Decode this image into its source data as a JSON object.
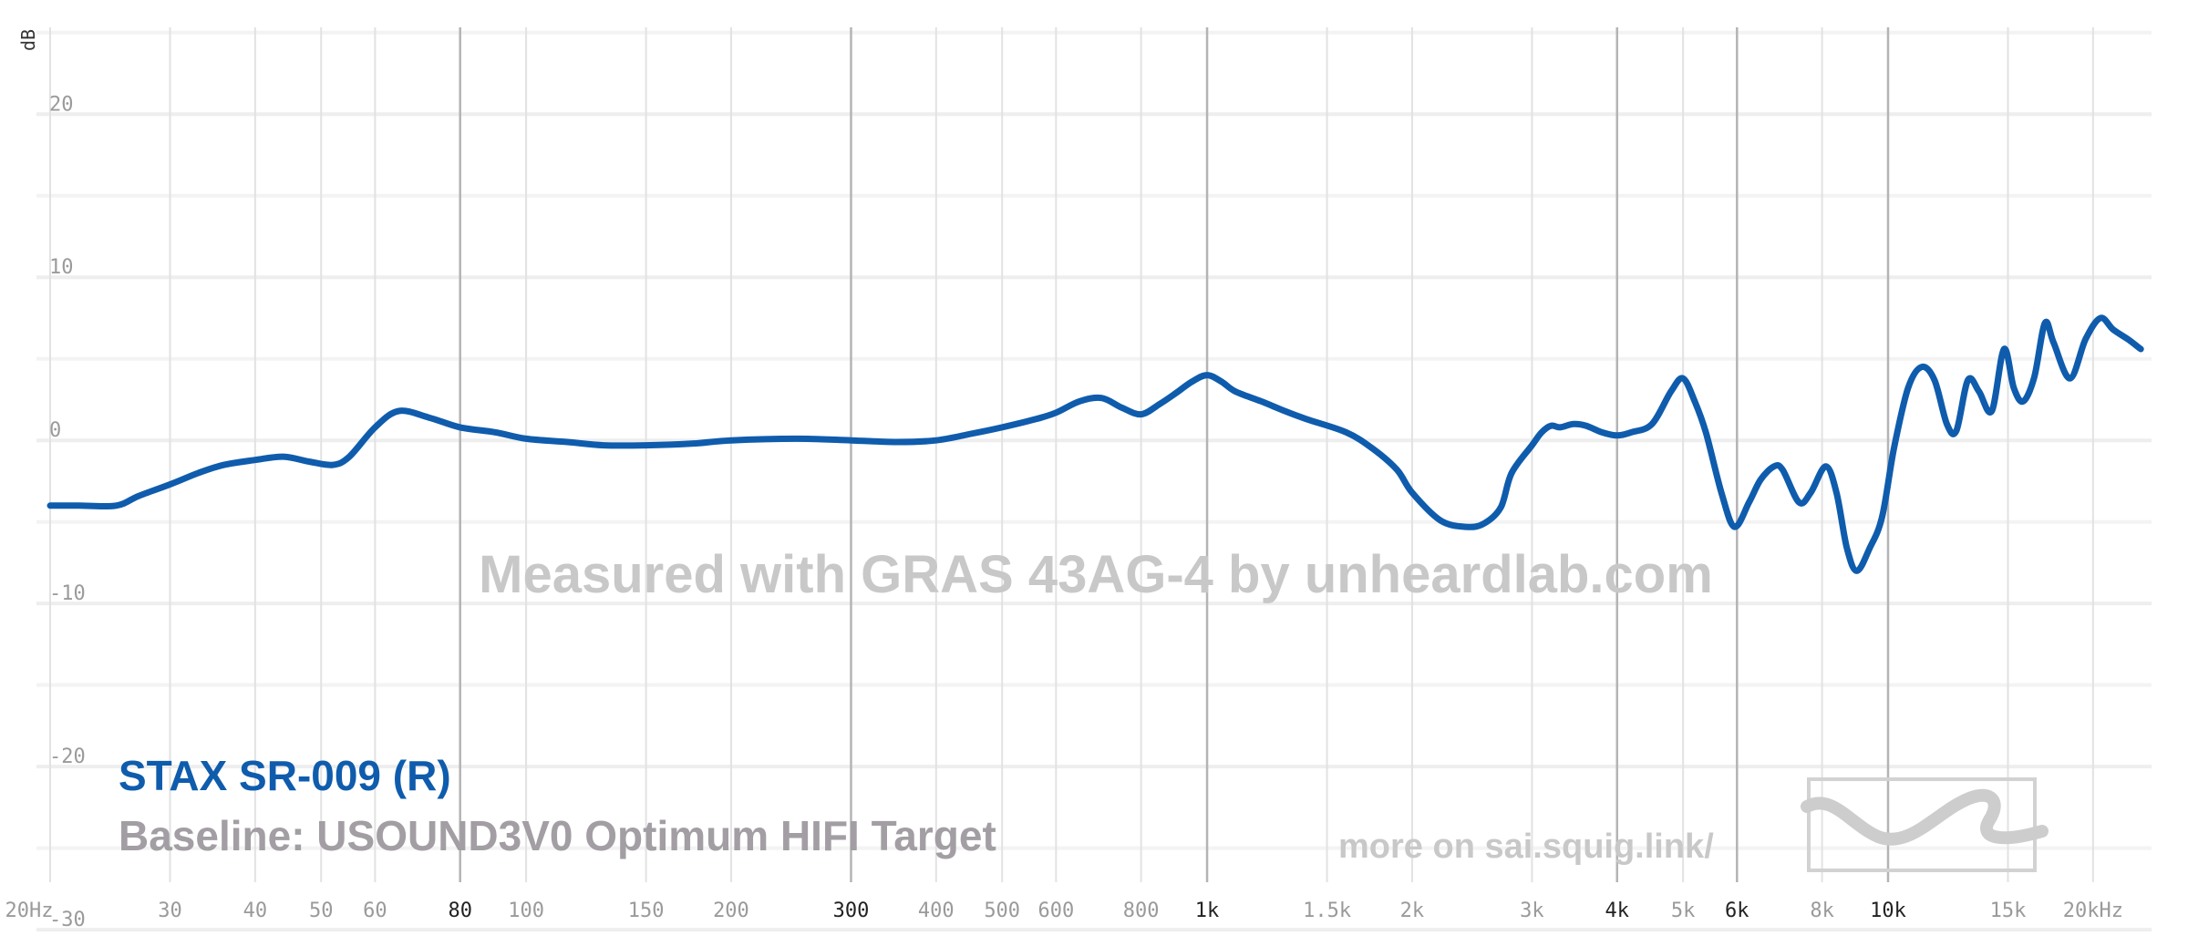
{
  "chart_data": {
    "type": "line",
    "ylabel": "dB",
    "xscale": "log",
    "xlim": [
      20,
      24000
    ],
    "ylim": [
      -31,
      27
    ],
    "yticks": [
      {
        "v": 20,
        "label": "20"
      },
      {
        "v": 10,
        "label": "10"
      },
      {
        "v": 0,
        "label": "0"
      },
      {
        "v": -10,
        "label": "-10"
      },
      {
        "v": -20,
        "label": "-20"
      },
      {
        "v": -30,
        "label": "-30"
      }
    ],
    "xticks": [
      {
        "v": 20,
        "label": "20Hz",
        "major": false
      },
      {
        "v": 30,
        "label": "30",
        "major": false
      },
      {
        "v": 40,
        "label": "40",
        "major": false
      },
      {
        "v": 50,
        "label": "50",
        "major": false
      },
      {
        "v": 60,
        "label": "60",
        "major": false
      },
      {
        "v": 80,
        "label": "80",
        "major": true
      },
      {
        "v": 100,
        "label": "100",
        "major": false
      },
      {
        "v": 150,
        "label": "150",
        "major": false
      },
      {
        "v": 200,
        "label": "200",
        "major": false
      },
      {
        "v": 300,
        "label": "300",
        "major": true
      },
      {
        "v": 400,
        "label": "400",
        "major": false
      },
      {
        "v": 500,
        "label": "500",
        "major": false
      },
      {
        "v": 600,
        "label": "600",
        "major": false
      },
      {
        "v": 800,
        "label": "800",
        "major": false
      },
      {
        "v": 1000,
        "label": "1k",
        "major": true
      },
      {
        "v": 1500,
        "label": "1.5k",
        "major": false
      },
      {
        "v": 2000,
        "label": "2k",
        "major": false
      },
      {
        "v": 3000,
        "label": "3k",
        "major": false
      },
      {
        "v": 4000,
        "label": "4k",
        "major": true
      },
      {
        "v": 5000,
        "label": "5k",
        "major": false
      },
      {
        "v": 6000,
        "label": "6k",
        "major": true
      },
      {
        "v": 8000,
        "label": "8k",
        "major": false
      },
      {
        "v": 10000,
        "label": "10k",
        "major": true
      },
      {
        "v": 15000,
        "label": "15k",
        "major": false
      },
      {
        "v": 20000,
        "label": "20kHz",
        "major": false
      }
    ],
    "minor_gridlines_db": [
      25,
      15,
      5,
      -5,
      -15,
      -25
    ],
    "legend_placement": "bottom-left",
    "series": [
      {
        "name": "STAX SR-009 (R)",
        "color": "#0f5cad",
        "x": [
          20,
          22,
          25,
          27,
          30,
          33,
          36,
          40,
          44,
          48,
          52,
          55,
          60,
          65,
          72,
          80,
          90,
          100,
          115,
          130,
          150,
          175,
          200,
          250,
          300,
          350,
          400,
          450,
          500,
          560,
          600,
          650,
          700,
          750,
          800,
          850,
          900,
          950,
          1000,
          1050,
          1100,
          1200,
          1300,
          1400,
          1600,
          1750,
          1900,
          2000,
          2200,
          2400,
          2550,
          2700,
          2800,
          3000,
          3100,
          3200,
          3300,
          3450,
          3600,
          3800,
          4000,
          4200,
          4500,
          4800,
          5000,
          5200,
          5400,
          5700,
          5950,
          6250,
          6500,
          6800,
          7000,
          7400,
          7700,
          8100,
          8400,
          8700,
          9000,
          9400,
          9800,
          10200,
          10700,
          11200,
          11700,
          12200,
          12600,
          13100,
          13600,
          14200,
          14800,
          15300,
          15800,
          16400,
          17000,
          17500,
          18500,
          19500,
          20500,
          21400,
          22500,
          23500
        ],
        "y": [
          -4.0,
          -4.0,
          -4.0,
          -3.4,
          -2.7,
          -2.0,
          -1.5,
          -1.2,
          -1.0,
          -1.3,
          -1.5,
          -1.0,
          0.8,
          1.8,
          1.4,
          0.8,
          0.5,
          0.1,
          -0.1,
          -0.3,
          -0.3,
          -0.2,
          0.0,
          0.1,
          0.0,
          -0.1,
          0.0,
          0.4,
          0.8,
          1.3,
          1.7,
          2.4,
          2.6,
          2.0,
          1.6,
          2.2,
          2.9,
          3.6,
          4.0,
          3.6,
          3.0,
          2.4,
          1.8,
          1.3,
          0.5,
          -0.5,
          -1.8,
          -3.2,
          -4.9,
          -5.3,
          -5.1,
          -4.1,
          -2.0,
          -0.3,
          0.5,
          0.9,
          0.8,
          1.0,
          0.9,
          0.5,
          0.3,
          0.5,
          1.0,
          3.0,
          3.8,
          2.4,
          0.5,
          -3.3,
          -5.3,
          -3.8,
          -2.4,
          -1.6,
          -1.8,
          -3.8,
          -3.2,
          -1.6,
          -3.2,
          -6.6,
          -8.0,
          -6.6,
          -4.7,
          -0.5,
          3.2,
          4.5,
          3.7,
          1.0,
          0.6,
          3.7,
          3.0,
          1.8,
          5.6,
          3.2,
          2.4,
          3.9,
          7.2,
          6.0,
          3.8,
          6.2,
          7.5,
          6.8,
          6.2,
          5.6
        ]
      }
    ],
    "baseline_label": "Baseline: USOUND3V0 Optimum HIFI Target",
    "watermark": "Measured with GRAS 43AG-4 by unheardlab.com",
    "link_text": "more on sai.squig.link/"
  }
}
